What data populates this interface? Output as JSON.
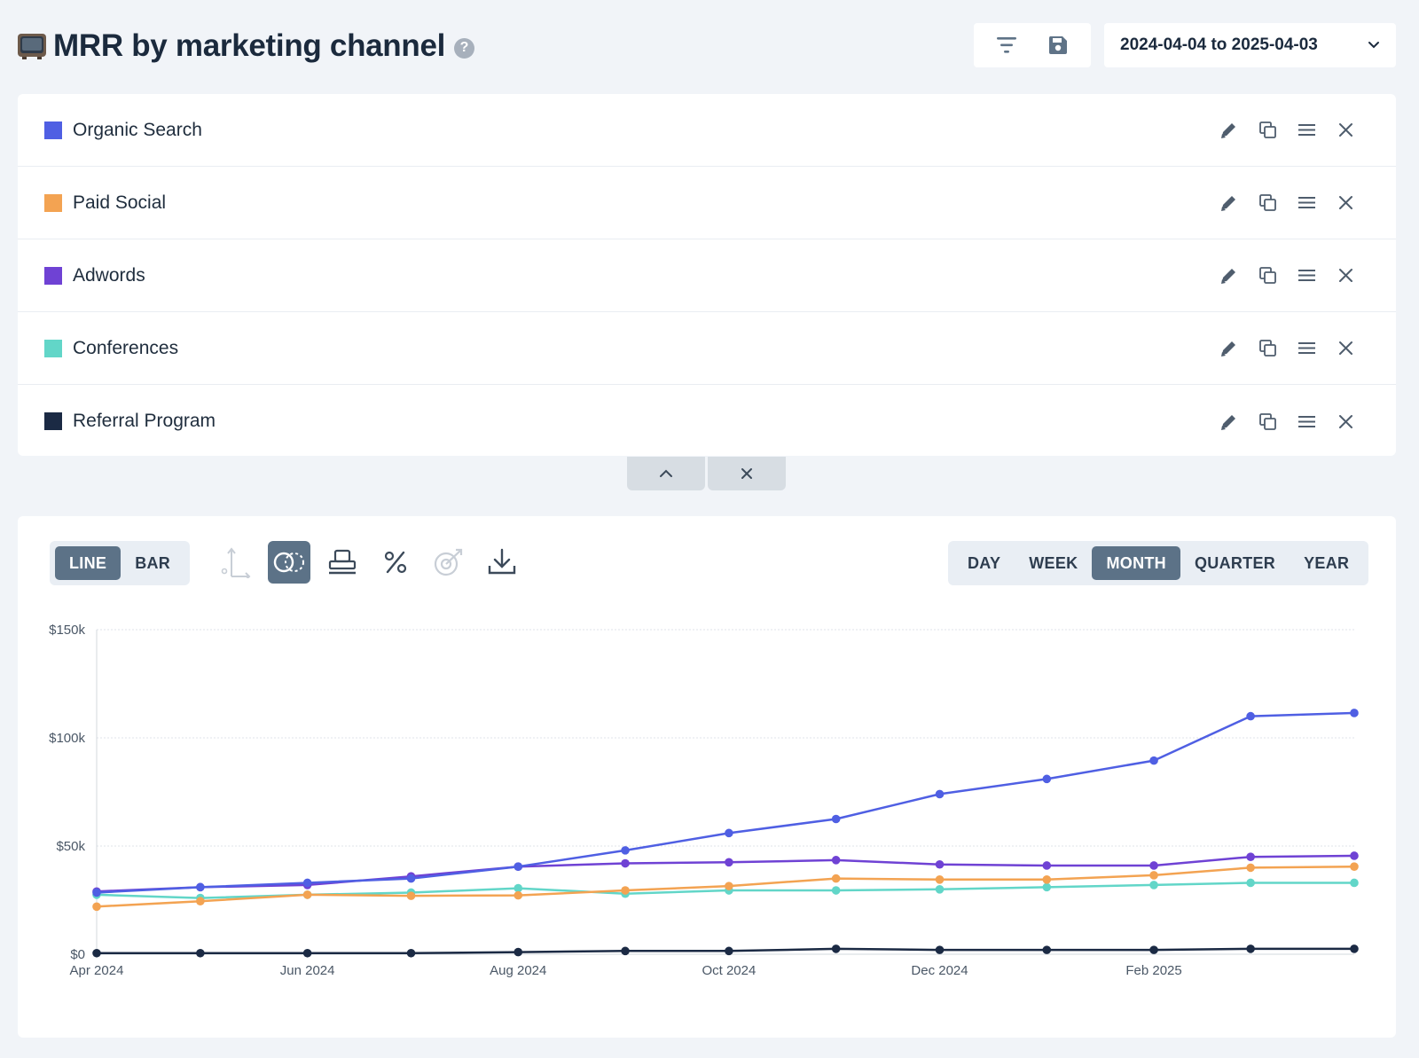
{
  "header": {
    "title": "MRR by marketing channel",
    "help": "?",
    "date_range": "2024-04-04 to 2025-04-03"
  },
  "series_list": [
    {
      "label": "Organic Search",
      "color": "#4f5fe3"
    },
    {
      "label": "Paid Social",
      "color": "#f3a352"
    },
    {
      "label": "Adwords",
      "color": "#6f42d4"
    },
    {
      "label": "Conferences",
      "color": "#62d6c8"
    },
    {
      "label": "Referral Program",
      "color": "#1b2a44"
    }
  ],
  "chart_type_toggle": {
    "options": [
      "LINE",
      "BAR"
    ],
    "selected": "LINE"
  },
  "period_toggle": {
    "options": [
      "DAY",
      "WEEK",
      "MONTH",
      "QUARTER",
      "YEAR"
    ],
    "selected": "MONTH"
  },
  "icons": {
    "toolbar": [
      "filter-icon",
      "save-icon"
    ],
    "row_actions": [
      "edit-icon",
      "duplicate-icon",
      "menu-icon",
      "remove-icon"
    ],
    "chart_tools": [
      "axis-icon",
      "compare-icon",
      "stack-icon",
      "percent-icon",
      "goal-icon",
      "download-icon"
    ]
  },
  "chart_data": {
    "type": "line",
    "x": [
      "2024-04-04",
      "2024-05-04",
      "2024-06-04",
      "2024-07-04",
      "2024-08-04",
      "2024-09-04",
      "2024-10-04",
      "2024-11-04",
      "2024-12-04",
      "2025-01-04",
      "2025-02-04",
      "2025-03-04",
      "2025-04-03"
    ],
    "x_tick_labels": [
      "Apr 2024",
      "Jun 2024",
      "Aug 2024",
      "Oct 2024",
      "Dec 2024",
      "Feb 2025"
    ],
    "y_tick_labels": [
      "$0",
      "$50k",
      "$100k",
      "$150k"
    ],
    "ylim": [
      0,
      150000
    ],
    "grid": true,
    "series": [
      {
        "name": "Organic Search",
        "color": "#4f5fe3",
        "values": [
          28500,
          31000,
          33000,
          35000,
          40500,
          48000,
          56000,
          62500,
          74000,
          81000,
          89500,
          110000,
          111500
        ]
      },
      {
        "name": "Paid Social",
        "color": "#f3a352",
        "values": [
          22000,
          24500,
          27500,
          27000,
          27200,
          29500,
          31500,
          35000,
          34500,
          34500,
          36500,
          40000,
          40500
        ]
      },
      {
        "name": "Adwords",
        "color": "#6f42d4",
        "values": [
          29000,
          31000,
          32000,
          36000,
          40500,
          42000,
          42500,
          43500,
          41500,
          41000,
          41000,
          45000,
          45500
        ]
      },
      {
        "name": "Conferences",
        "color": "#62d6c8",
        "values": [
          27500,
          26000,
          27500,
          28500,
          30500,
          28000,
          29500,
          29500,
          30000,
          31000,
          32000,
          33000,
          33000
        ]
      },
      {
        "name": "Referral Program",
        "color": "#1b2a44",
        "values": [
          500,
          500,
          500,
          500,
          1000,
          1500,
          1500,
          2500,
          2000,
          2000,
          2000,
          2500,
          2500
        ]
      }
    ]
  }
}
